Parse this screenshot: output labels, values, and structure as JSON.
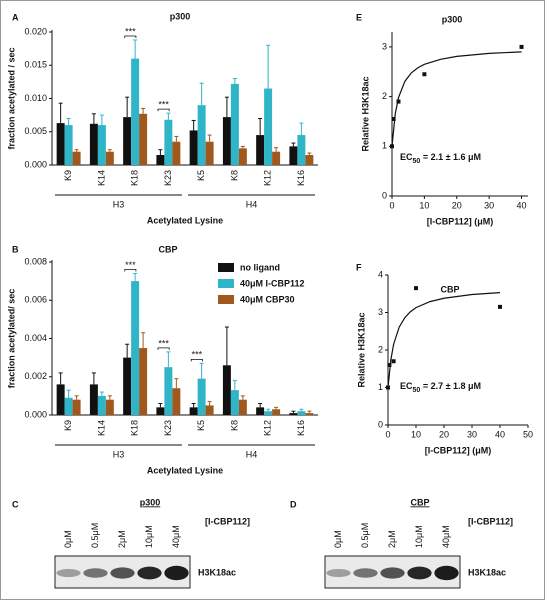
{
  "chart_data": [
    {
      "type": "bar",
      "label": "A",
      "title": "p300",
      "categories": [
        "K9",
        "K14",
        "K18",
        "K23",
        "K5",
        "K8",
        "K12",
        "K16"
      ],
      "groups": [
        {
          "label": "H3",
          "categories": [
            "K9",
            "K14",
            "K18",
            "K23"
          ]
        },
        {
          "label": "H4",
          "categories": [
            "K5",
            "K8",
            "K12",
            "K16"
          ]
        }
      ],
      "series": [
        {
          "color": "#111111",
          "values": [
            0.0063,
            0.0062,
            0.0072,
            0.0015,
            0.0052,
            0.0072,
            0.0045,
            0.0028
          ],
          "errors": [
            0.003,
            0.0015,
            0.003,
            0.0008,
            0.0015,
            0.003,
            0.0025,
            0.0005
          ]
        },
        {
          "color": "#2fb4c8",
          "values": [
            0.006,
            0.006,
            0.016,
            0.0068,
            0.009,
            0.0122,
            0.0115,
            0.0045
          ],
          "errors": [
            0.001,
            0.0015,
            0.0028,
            0.001,
            0.0033,
            0.0008,
            0.0065,
            0.0018
          ]
        },
        {
          "color": "#a0581d",
          "values": [
            0.002,
            0.002,
            0.0077,
            0.0035,
            0.0035,
            0.0025,
            0.002,
            0.0015
          ],
          "errors": [
            0.0003,
            0.0003,
            0.0008,
            0.0008,
            0.001,
            0.0003,
            0.0006,
            0.0003
          ]
        }
      ],
      "annotations": [
        {
          "text": "***",
          "category": "K18"
        },
        {
          "text": "***",
          "category": "K23"
        }
      ],
      "ylim": [
        0,
        0.02
      ],
      "yticks": [
        {
          "value": 0,
          "label": "0.000"
        },
        {
          "value": 0.005,
          "label": "0.005"
        },
        {
          "value": 0.01,
          "label": "0.010"
        },
        {
          "value": 0.015,
          "label": "0.015"
        },
        {
          "value": 0.02,
          "label": "0.020"
        }
      ],
      "ylabel": "fraction acetylated / sec",
      "xlabel": "Acetylated Lysine"
    },
    {
      "type": "bar",
      "label": "B",
      "title": "CBP",
      "categories": [
        "K9",
        "K14",
        "K18",
        "K23",
        "K5",
        "K8",
        "K12",
        "K16"
      ],
      "groups": [
        {
          "label": "H3",
          "categories": [
            "K9",
            "K14",
            "K18",
            "K23"
          ]
        },
        {
          "label": "H4",
          "categories": [
            "K5",
            "K8",
            "K12",
            "K16"
          ]
        }
      ],
      "series": [
        {
          "name": "no ligand",
          "color": "#111111",
          "values": [
            0.0016,
            0.0016,
            0.003,
            0.0004,
            0.0004,
            0.0026,
            0.0004,
            0.0001
          ],
          "errors": [
            0.0006,
            0.0006,
            0.0007,
            0.0002,
            0.0002,
            0.002,
            0.0002,
            0.0001
          ]
        },
        {
          "name": "40μM I-CBP112",
          "color": "#2fb4c8",
          "values": [
            0.0009,
            0.001,
            0.007,
            0.0025,
            0.0019,
            0.0013,
            0.0002,
            0.0002
          ],
          "errors": [
            0.0004,
            0.0002,
            0.0004,
            0.0008,
            0.0008,
            0.0005,
            0.0001,
            0.0001
          ]
        },
        {
          "name": "40μM CBP30",
          "color": "#a0581d",
          "values": [
            0.0008,
            0.0008,
            0.0035,
            0.0014,
            0.0005,
            0.0008,
            0.0003,
            0.0001
          ],
          "errors": [
            0.0002,
            0.0002,
            0.0008,
            0.0005,
            0.0002,
            0.0002,
            0.0001,
            0.0001
          ]
        }
      ],
      "annotations": [
        {
          "text": "***",
          "category": "K18"
        },
        {
          "text": "***",
          "category": "K23"
        },
        {
          "text": "***",
          "category": "K5"
        }
      ],
      "ylim": [
        0,
        0.008
      ],
      "yticks": [
        {
          "value": 0,
          "label": "0.000"
        },
        {
          "value": 0.002,
          "label": "0.002"
        },
        {
          "value": 0.004,
          "label": "0.004"
        },
        {
          "value": 0.006,
          "label": "0.006"
        },
        {
          "value": 0.008,
          "label": "0.008"
        }
      ],
      "ylabel": "fraction acetylated/ sec",
      "xlabel": "Acetylated Lysine"
    },
    {
      "type": "scatter",
      "label": "E",
      "title": "p300",
      "x": [
        0,
        0.5,
        2,
        10,
        40
      ],
      "values": [
        1.0,
        1.55,
        1.9,
        2.45,
        3.0
      ],
      "fit": {
        "x": [
          0,
          1,
          2,
          4,
          6,
          8,
          10,
          15,
          20,
          30,
          40
        ],
        "y": [
          1,
          1.65,
          1.98,
          2.31,
          2.48,
          2.58,
          2.65,
          2.75,
          2.81,
          2.87,
          2.9
        ]
      },
      "annotation": {
        "prefix": "EC",
        "sub": "50",
        "text": " = 2.1 ± 1.6 μM"
      },
      "xlim": [
        0,
        42
      ],
      "xticks": [
        0,
        10,
        20,
        30,
        40
      ],
      "ylim": [
        0,
        3.3
      ],
      "yticks": [
        0,
        1,
        2,
        3
      ],
      "ylabel": "Relative H3K18ac",
      "xlabel": "[I-CBP112] (μM)"
    },
    {
      "type": "scatter",
      "label": "F",
      "title": "CBP",
      "x": [
        0,
        0.5,
        2,
        10,
        40
      ],
      "values": [
        1.0,
        1.6,
        1.7,
        3.65,
        3.15
      ],
      "fit": {
        "x": [
          0,
          1,
          2,
          4,
          6,
          8,
          10,
          15,
          20,
          30,
          40
        ],
        "y": [
          1,
          1.73,
          2.15,
          2.61,
          2.86,
          3.02,
          3.13,
          3.29,
          3.38,
          3.48,
          3.53
        ]
      },
      "annotation": {
        "prefix": "EC",
        "sub": "50",
        "text": " = 2.7 ± 1.8 μM"
      },
      "xlim": [
        0,
        50
      ],
      "xticks": [
        0,
        10,
        20,
        30,
        40,
        50
      ],
      "ylim": [
        0,
        4
      ],
      "yticks": [
        0,
        1,
        2,
        3,
        4
      ],
      "ylabel": "Relative H3K18ac",
      "xlabel": "[I-CBP112] (μM)"
    }
  ],
  "blots": [
    {
      "label": "C",
      "title": "p300",
      "lanes": [
        "0μM",
        "0.5μM",
        "2μM",
        "10μM",
        "40μM"
      ],
      "ligand": "[I-CBP112]",
      "band": "H3K18ac"
    },
    {
      "label": "D",
      "title": "CBP",
      "lanes": [
        "0μM",
        "0.5μM",
        "2μM",
        "10μM",
        "40μM"
      ],
      "ligand": "[I-CBP112]",
      "band": "H3K18ac"
    }
  ]
}
